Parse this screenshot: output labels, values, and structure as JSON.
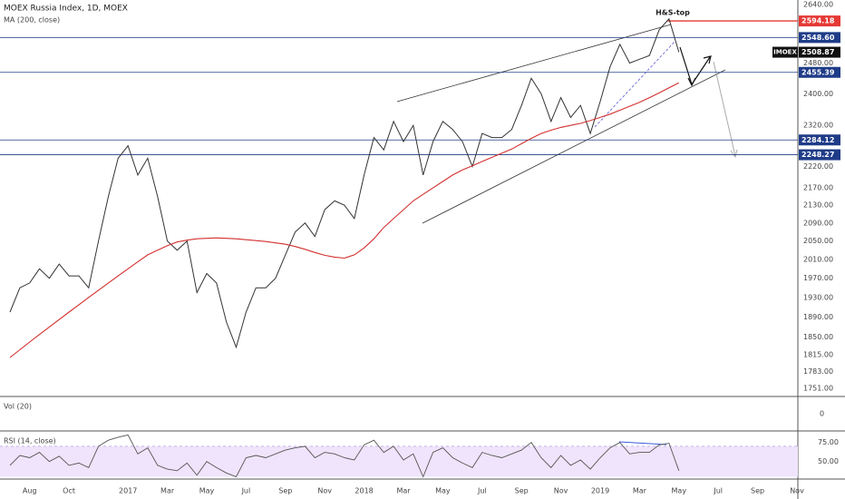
{
  "chart_data": {
    "type": "line",
    "title": "MOEX Russia Index, 1D, MOEX",
    "log_scale": true,
    "grid": false,
    "categories": [
      null,
      null,
      "Aug",
      null,
      null,
      null,
      "Oct",
      null,
      null,
      null,
      null,
      null,
      "2017",
      null,
      null,
      null,
      "Mar",
      null,
      null,
      null,
      "May",
      null,
      null,
      null,
      "Jul",
      null,
      null,
      null,
      "Sep",
      null,
      null,
      null,
      "Nov",
      null,
      null,
      null,
      "2018",
      null,
      null,
      null,
      "Mar",
      null,
      null,
      null,
      "May",
      null,
      null,
      null,
      "Jul",
      null,
      null,
      null,
      "Sep",
      null,
      null,
      null,
      "Nov",
      null,
      null,
      null,
      "2019",
      null,
      null,
      null,
      "Mar",
      null,
      null,
      null,
      "May",
      null,
      null,
      null,
      "Jul",
      null,
      null,
      null,
      "Sep",
      null,
      null,
      null,
      "Nov"
    ],
    "series": [
      {
        "name": "IMOEX",
        "color": "#333333",
        "values": [
          1900,
          1950,
          1960,
          1990,
          1970,
          2000,
          1975,
          1975,
          1950,
          2050,
          2150,
          2240,
          2270,
          2200,
          2240,
          2150,
          2050,
          2030,
          2050,
          1940,
          1980,
          1960,
          1880,
          1830,
          1900,
          1950,
          1950,
          1970,
          2020,
          2070,
          2090,
          2060,
          2120,
          2140,
          2130,
          2100,
          2200,
          2290,
          2260,
          2330,
          2280,
          2320,
          2200,
          2280,
          2330,
          2310,
          2280,
          2220,
          2300,
          2290,
          2290,
          2310,
          2370,
          2440,
          2400,
          2330,
          2390,
          2340,
          2370,
          2300,
          2380,
          2470,
          2530,
          2480,
          2490,
          2500,
          2570,
          2600,
          2509,
          null,
          null,
          null,
          null,
          null,
          null,
          null,
          null,
          null,
          null,
          null,
          null
        ]
      },
      {
        "name": "MA (200, close)",
        "color": "#d32f2f",
        "values": [
          1810,
          1825,
          1840,
          1855,
          1870,
          1885,
          1900,
          1915,
          1930,
          1945,
          1960,
          1975,
          1990,
          2005,
          2020,
          2030,
          2040,
          2048,
          2052,
          2055,
          2056,
          2057,
          2056,
          2055,
          2053,
          2051,
          2049,
          2046,
          2043,
          2038,
          2032,
          2025,
          2019,
          2015,
          2013,
          2020,
          2035,
          2055,
          2080,
          2100,
          2120,
          2140,
          2155,
          2170,
          2185,
          2200,
          2212,
          2222,
          2232,
          2242,
          2252,
          2262,
          2275,
          2288,
          2300,
          2308,
          2315,
          2320,
          2325,
          2332,
          2340,
          2348,
          2358,
          2368,
          2378,
          2390,
          2402,
          2415,
          2428,
          null,
          null,
          null,
          null,
          null,
          null,
          null,
          null,
          null,
          null,
          null,
          null
        ]
      }
    ],
    "ylim": [
      1736,
      2653
    ],
    "yticks": [
      {
        "value": 2640,
        "label": "2640.00"
      },
      {
        "value": 2480,
        "label": "2480.00"
      },
      {
        "value": 2400,
        "label": "2400.00"
      },
      {
        "value": 2320,
        "label": "2320.00"
      },
      {
        "value": 2220,
        "label": "2220.00"
      },
      {
        "value": 2170,
        "label": "2170.00"
      },
      {
        "value": 2130,
        "label": "2130.00"
      },
      {
        "value": 2090,
        "label": "2090.00"
      },
      {
        "value": 2050,
        "label": "2050.00"
      },
      {
        "value": 2010,
        "label": "2010.00"
      },
      {
        "value": 1970,
        "label": "1970.00"
      },
      {
        "value": 1930,
        "label": "1930.00"
      },
      {
        "value": 1890,
        "label": "1890.00"
      },
      {
        "value": 1850,
        "label": "1850.00"
      },
      {
        "value": 1815,
        "label": "1815.00"
      },
      {
        "value": 1783,
        "label": "1783.00"
      },
      {
        "value": 1751,
        "label": "1751.00"
      }
    ],
    "levels": [
      {
        "value": 2594.18,
        "color": "#e53935"
      },
      {
        "value": 2548.6,
        "label": "2548.60",
        "color": "#1f3c88"
      },
      {
        "value": 2455.39,
        "color": "#1f3c88"
      },
      {
        "value": 2284.12,
        "color": "#1f3c88"
      },
      {
        "value": 2248.27,
        "color": "#1f3c88"
      }
    ],
    "last_price": {
      "value": 2508.87,
      "color": "#111111"
    },
    "annotation": "H&S-top",
    "volume": {
      "title": "Vol (20)",
      "yticks": [
        0
      ]
    },
    "rsi": {
      "title": "RSI (14, close)",
      "color": "#555555",
      "band": [
        30,
        70
      ],
      "ylim": [
        27,
        89
      ],
      "yticks": [
        {
          "value": 75,
          "label": "75.00"
        },
        {
          "value": 50,
          "label": "50.00"
        }
      ],
      "values": [
        45,
        58,
        55,
        62,
        50,
        57,
        45,
        48,
        42,
        70,
        78,
        82,
        85,
        60,
        68,
        45,
        40,
        38,
        48,
        32,
        50,
        42,
        35,
        30,
        55,
        58,
        55,
        60,
        65,
        68,
        70,
        55,
        62,
        60,
        55,
        52,
        72,
        78,
        62,
        70,
        52,
        60,
        30,
        62,
        68,
        55,
        48,
        42,
        62,
        58,
        55,
        60,
        65,
        75,
        55,
        42,
        58,
        45,
        52,
        40,
        55,
        68,
        75,
        60,
        62,
        62,
        72,
        74,
        38,
        null,
        null,
        null,
        null,
        null,
        null,
        null,
        null,
        null,
        null,
        null,
        null
      ]
    }
  }
}
